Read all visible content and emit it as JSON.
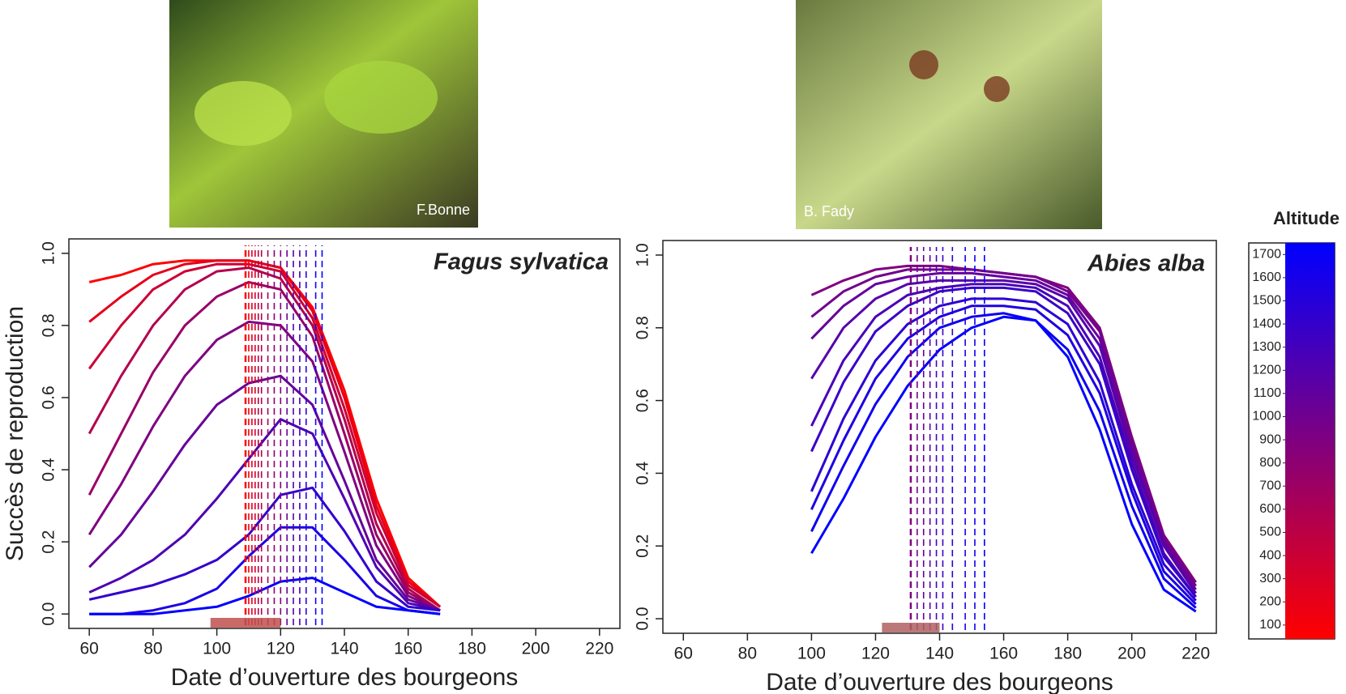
{
  "photos": [
    {
      "credit": "F.Bonne"
    },
    {
      "credit": "B. Fady"
    }
  ],
  "colorbar": {
    "title": "Altitude",
    "ticks": [
      100,
      200,
      300,
      400,
      500,
      600,
      700,
      800,
      900,
      1000,
      1100,
      1200,
      1300,
      1400,
      1500,
      1600,
      1700
    ],
    "lim": [
      40,
      1750
    ],
    "colors": [
      "#ff0000",
      "#0000ff"
    ]
  },
  "chart_data": [
    {
      "type": "line",
      "title": "Fagus sylvatica",
      "xlabel": "Date d’ouverture des bourgeons",
      "ylabel": "Succès de reproduction",
      "xlim": [
        53.6,
        226.4
      ],
      "ylim": [
        -0.04,
        1.04
      ],
      "xticks": [
        60,
        80,
        100,
        120,
        140,
        160,
        180,
        200,
        220
      ],
      "yticks": [
        {
          "value": 0,
          "label": "0.0"
        },
        0.2,
        0.4,
        0.6,
        0.8,
        {
          "value": 1,
          "label": "1.0"
        }
      ],
      "x": [
        60,
        70,
        80,
        90,
        100,
        110,
        120,
        130,
        140,
        150,
        160,
        170
      ],
      "series": [
        {
          "color": "#ff0000",
          "values": [
            0.92,
            0.94,
            0.97,
            0.98,
            0.98,
            0.98,
            0.96,
            0.85,
            0.62,
            0.32,
            0.1,
            0.02
          ]
        },
        {
          "color": "#e6001a",
          "values": [
            0.81,
            0.88,
            0.94,
            0.97,
            0.98,
            0.98,
            0.96,
            0.84,
            0.6,
            0.3,
            0.09,
            0.02
          ]
        },
        {
          "color": "#cc0033",
          "values": [
            0.68,
            0.8,
            0.9,
            0.95,
            0.97,
            0.97,
            0.95,
            0.82,
            0.57,
            0.28,
            0.08,
            0.02
          ]
        },
        {
          "color": "#b3004d",
          "values": [
            0.5,
            0.66,
            0.8,
            0.9,
            0.95,
            0.96,
            0.93,
            0.8,
            0.54,
            0.25,
            0.07,
            0.01
          ]
        },
        {
          "color": "#990066",
          "values": [
            0.33,
            0.5,
            0.67,
            0.8,
            0.88,
            0.92,
            0.9,
            0.77,
            0.5,
            0.22,
            0.06,
            0.01
          ]
        },
        {
          "color": "#800080",
          "values": [
            0.22,
            0.36,
            0.52,
            0.66,
            0.76,
            0.81,
            0.8,
            0.7,
            0.45,
            0.19,
            0.05,
            0.01
          ]
        },
        {
          "color": "#660099",
          "values": [
            0.13,
            0.22,
            0.34,
            0.47,
            0.58,
            0.64,
            0.66,
            0.58,
            0.37,
            0.15,
            0.04,
            0.01
          ]
        },
        {
          "color": "#4d00b3",
          "values": [
            0.06,
            0.1,
            0.15,
            0.22,
            0.32,
            0.43,
            0.54,
            0.5,
            0.32,
            0.13,
            0.03,
            0.01
          ]
        },
        {
          "color": "#3300cc",
          "values": [
            0.04,
            0.06,
            0.08,
            0.11,
            0.15,
            0.22,
            0.33,
            0.35,
            0.23,
            0.09,
            0.02,
            0.01
          ]
        },
        {
          "color": "#1a00e6",
          "values": [
            0.0,
            0.0,
            0.01,
            0.03,
            0.07,
            0.16,
            0.24,
            0.24,
            0.15,
            0.05,
            0.01,
            0.0
          ]
        },
        {
          "color": "#0000ff",
          "values": [
            0.0,
            0.0,
            0.0,
            0.01,
            0.02,
            0.05,
            0.09,
            0.1,
            0.06,
            0.02,
            0.01,
            0.0
          ]
        }
      ],
      "markers": {
        "x": [
          109,
          110,
          111,
          112,
          113,
          114,
          116,
          118,
          120,
          122,
          124,
          126,
          128,
          131,
          133
        ],
        "colors": [
          "#ff0000",
          "#f00010",
          "#e00020",
          "#d00030",
          "#c00040",
          "#b00050",
          "#a00060",
          "#900070",
          "#800080",
          "#6a0095",
          "#5500aa",
          "#4000bf",
          "#2b00d4",
          "#1500ea",
          "#0000ff"
        ]
      },
      "range": [
        98,
        120
      ],
      "range_color": "#c0504d"
    },
    {
      "type": "line",
      "title": "Abies alba",
      "xlabel": "Date d’ouverture des bourgeons",
      "xlim": [
        53.6,
        226.4
      ],
      "ylim": [
        -0.04,
        1.04
      ],
      "xticks": [
        60,
        80,
        100,
        120,
        140,
        160,
        180,
        200,
        220
      ],
      "yticks": [
        {
          "value": 0,
          "label": "0.0"
        },
        0.2,
        0.4,
        0.6,
        0.8,
        {
          "value": 1,
          "label": "1.0"
        }
      ],
      "x": [
        100,
        110,
        120,
        130,
        140,
        150,
        160,
        170,
        180,
        190,
        200,
        210,
        220
      ],
      "series": [
        {
          "color": "#800080",
          "values": [
            0.89,
            0.93,
            0.96,
            0.97,
            0.97,
            0.96,
            0.95,
            0.94,
            0.91,
            0.8,
            0.5,
            0.23,
            0.1
          ]
        },
        {
          "color": "#72008e",
          "values": [
            0.83,
            0.9,
            0.94,
            0.96,
            0.96,
            0.96,
            0.95,
            0.94,
            0.9,
            0.79,
            0.49,
            0.22,
            0.09
          ]
        },
        {
          "color": "#64009c",
          "values": [
            0.77,
            0.86,
            0.92,
            0.94,
            0.95,
            0.95,
            0.94,
            0.93,
            0.89,
            0.77,
            0.47,
            0.21,
            0.08
          ]
        },
        {
          "color": "#5600aa",
          "values": [
            0.66,
            0.8,
            0.88,
            0.92,
            0.93,
            0.93,
            0.93,
            0.92,
            0.88,
            0.75,
            0.45,
            0.2,
            0.07
          ]
        },
        {
          "color": "#4800b8",
          "values": [
            0.53,
            0.71,
            0.83,
            0.89,
            0.91,
            0.92,
            0.92,
            0.91,
            0.86,
            0.72,
            0.43,
            0.18,
            0.06
          ]
        },
        {
          "color": "#3900c6",
          "values": [
            0.46,
            0.65,
            0.79,
            0.86,
            0.9,
            0.91,
            0.91,
            0.9,
            0.84,
            0.7,
            0.41,
            0.17,
            0.06
          ]
        },
        {
          "color": "#2b00d4",
          "values": [
            0.35,
            0.55,
            0.71,
            0.81,
            0.86,
            0.88,
            0.88,
            0.87,
            0.81,
            0.65,
            0.37,
            0.15,
            0.05
          ]
        },
        {
          "color": "#1d00e2",
          "values": [
            0.3,
            0.49,
            0.66,
            0.77,
            0.83,
            0.86,
            0.86,
            0.85,
            0.78,
            0.62,
            0.35,
            0.13,
            0.04
          ]
        },
        {
          "color": "#0e00f0",
          "values": [
            0.24,
            0.42,
            0.59,
            0.72,
            0.8,
            0.83,
            0.84,
            0.82,
            0.74,
            0.57,
            0.31,
            0.11,
            0.03
          ]
        },
        {
          "color": "#0000ff",
          "values": [
            0.18,
            0.33,
            0.5,
            0.64,
            0.74,
            0.8,
            0.83,
            0.82,
            0.72,
            0.52,
            0.26,
            0.08,
            0.02
          ]
        }
      ],
      "markers": {
        "x": [
          131,
          133,
          135,
          137,
          139,
          141,
          144,
          148,
          151,
          154
        ],
        "colors": [
          "#800080",
          "#72008e",
          "#64009c",
          "#5600aa",
          "#4800b8",
          "#3900c6",
          "#2b00d4",
          "#1d00e2",
          "#0e00f0",
          "#0000ff"
        ]
      },
      "range": [
        122,
        140
      ],
      "range_color": "#b06060"
    }
  ]
}
